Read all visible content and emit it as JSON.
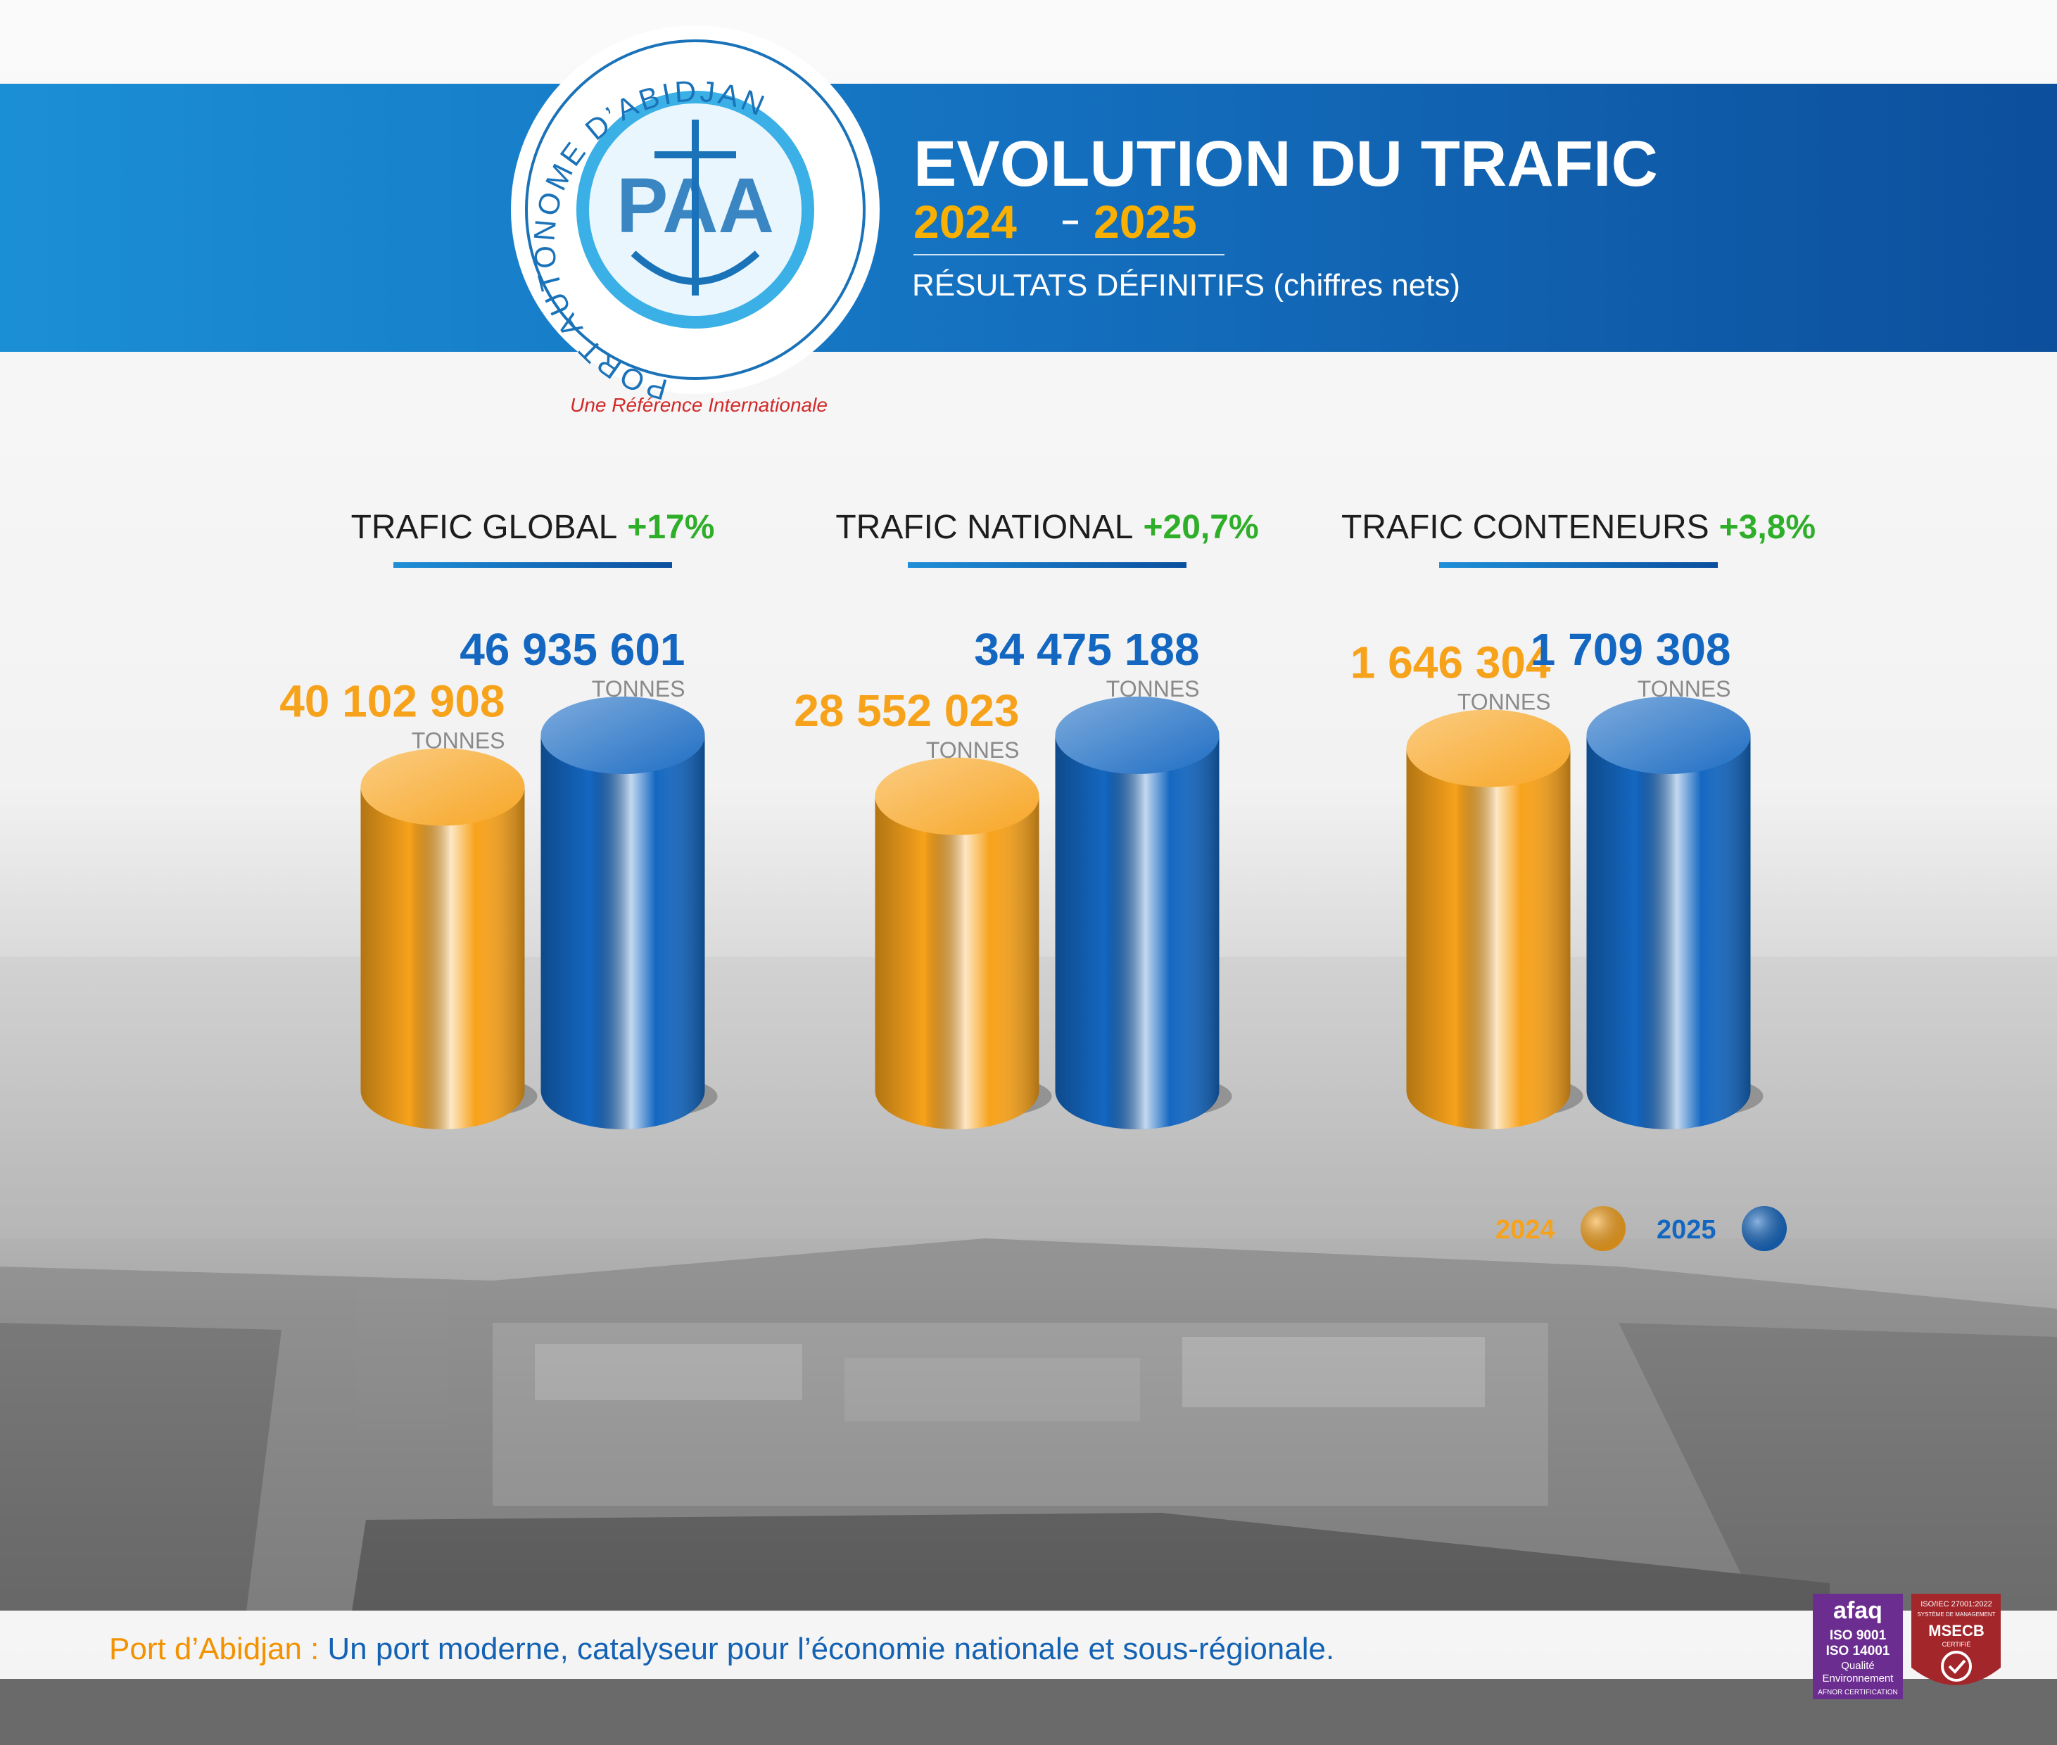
{
  "header": {
    "logo_text": "PORT AUTONOME D’ABIDJAN",
    "logo_monogram": "PAA",
    "tagline": "Une Référence Internationale",
    "title": "EVOLUTION DU TRAFIC",
    "years": [
      "2024",
      "2025"
    ],
    "subtitle": "RÉSULTATS DÉFINITIFS (chiffres nets)"
  },
  "legend": [
    {
      "name": "2024",
      "color": "#f7a21b"
    },
    {
      "name": "2025",
      "color": "#1467c1"
    }
  ],
  "chart_data": [
    {
      "type": "bar",
      "title": "TRAFIC GLOBAL",
      "change": "+17%",
      "unit": "TONNES",
      "values": [
        40102908,
        46935601
      ],
      "value_labels": [
        "40 102 908",
        "46 935 601"
      ]
    },
    {
      "type": "bar",
      "title": "TRAFIC NATIONAL",
      "change": "+20,7%",
      "unit": "TONNES",
      "values": [
        28552023,
        34475188
      ],
      "value_labels": [
        "28 552 023",
        "34 475 188"
      ]
    },
    {
      "type": "bar",
      "title": "TRAFIC CONTENEURS",
      "change": "+3,8%",
      "unit": "TONNES",
      "values": [
        1646304,
        1709308
      ],
      "value_labels": [
        "1 646 304",
        "1 709 308"
      ]
    }
  ],
  "footer": {
    "label": "Port d’Abidjan :",
    "text": "Un port moderne, catalyseur pour l’économie nationale et sous-régionale."
  },
  "certifications": [
    [
      "afaq",
      "ISO 9001",
      "ISO 14001",
      "Qualité",
      "Environnement",
      "AFNOR CERTIFICATION"
    ],
    [
      "ISO/IEC 27001:2022",
      "SYSTÈME DE MANAGEMENT",
      "MSECB",
      "CERTIFIÉ"
    ]
  ]
}
